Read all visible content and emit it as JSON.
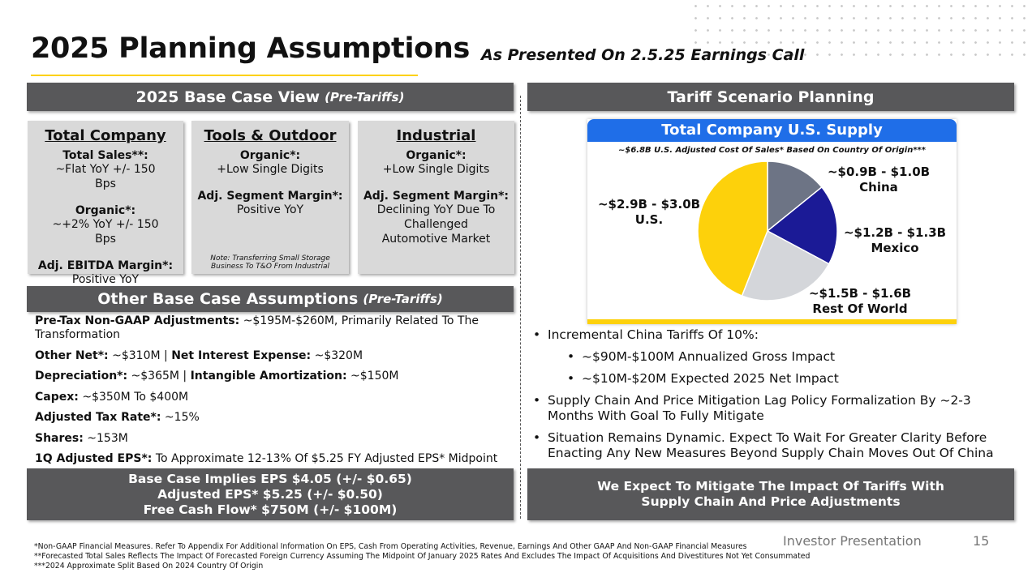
{
  "header": {
    "title": "2025 Planning Assumptions",
    "subtitle": "As Presented On 2.5.25 Earnings Call"
  },
  "left": {
    "banner": "2025 Base Case View",
    "banner_note": "(Pre-Tariffs)",
    "boxes": [
      {
        "heading": "Total Company",
        "items": [
          {
            "label": "Total Sales**:",
            "value": "~Flat YoY +/- 150 Bps"
          },
          {
            "label": "Organic*:",
            "value": "~+2% YoY +/- 150 Bps"
          },
          {
            "label": "Adj. EBITDA Margin*:",
            "value": "Positive YoY"
          }
        ]
      },
      {
        "heading": "Tools & Outdoor",
        "items": [
          {
            "label": "Organic*:",
            "value": "+Low Single Digits"
          },
          {
            "label": "Adj. Segment Margin*:",
            "value": "Positive YoY"
          }
        ],
        "note": "Note: Transferring Small Storage Business To T&O From Industrial"
      },
      {
        "heading": "Industrial",
        "items": [
          {
            "label": "Organic*:",
            "value": "+Low Single Digits"
          },
          {
            "label": "Adj. Segment Margin*:",
            "value": "Declining YoY Due To Challenged Automotive Market"
          }
        ]
      }
    ],
    "other_banner": "Other Base Case Assumptions",
    "other_banner_note": "(Pre-Tariffs)",
    "other_lines": [
      [
        {
          "b": "Pre-Tax Non-GAAP Adjustments:"
        },
        {
          "t": " ~$195M-$260M, Primarily Related To The Transformation"
        }
      ],
      [
        {
          "b": "Other Net*:"
        },
        {
          "t": " ~$310M | "
        },
        {
          "b": "Net Interest Expense:"
        },
        {
          "t": " ~$320M"
        }
      ],
      [
        {
          "b": "Depreciation*:"
        },
        {
          "t": " ~$365M | "
        },
        {
          "b": "Intangible Amortization:"
        },
        {
          "t": " ~$150M"
        }
      ],
      [
        {
          "b": "Capex:"
        },
        {
          "t": " ~$350M To $400M"
        }
      ],
      [
        {
          "b": "Adjusted Tax Rate*:"
        },
        {
          "t": " ~15%"
        }
      ],
      [
        {
          "b": "Shares:"
        },
        {
          "t": " ~153M"
        }
      ],
      [
        {
          "b": "1Q Adjusted EPS*:"
        },
        {
          "t": " To Approximate 12-13% Of $5.25 FY Adjusted EPS* Midpoint"
        }
      ]
    ],
    "summary": [
      "Base Case Implies EPS $4.05 (+/- $0.65)",
      "Adjusted EPS* $5.25 (+/- $0.50)",
      "Free Cash Flow* $750M (+/- $100M)"
    ]
  },
  "right": {
    "banner": "Tariff Scenario Planning",
    "pie_title": "Total Company U.S. Supply",
    "pie_subtitle": "~$6.8B U.S. Adjusted Cost Of Sales* Based On Country Of Origin***",
    "chart_data": {
      "type": "pie",
      "categories": [
        "China",
        "Mexico",
        "Rest Of World",
        "U.S."
      ],
      "values": [
        0.95,
        1.25,
        1.55,
        2.95
      ],
      "value_labels": [
        "~$0.9B - $1.0B",
        "~$1.2B - $1.3B",
        "~$1.5B - $1.6B",
        "~$2.9B - $3.0B"
      ],
      "colors": [
        "#6d7485",
        "#1b1a96",
        "#d4d6da",
        "#fdd10b"
      ]
    },
    "bullets": [
      {
        "text": "Incremental China Tariffs Of 10%:",
        "sub": [
          "~$90M-$100M Annualized Gross Impact",
          "~$10M-$20M Expected 2025 Net Impact"
        ]
      },
      {
        "text": "Supply Chain And Price Mitigation Lag Policy Formalization By ~2-3 Months With Goal To Fully Mitigate"
      },
      {
        "text": "Situation Remains Dynamic. Expect To Wait For Greater Clarity Before Enacting Any New Measures Beyond Supply Chain Moves Out Of China"
      }
    ],
    "summary": "We Expect To Mitigate The Impact Of Tariffs With Supply Chain And Price Adjustments"
  },
  "footer": {
    "notes": [
      "*Non-GAAP Financial Measures. Refer To Appendix For Additional Information On EPS, Cash From Operating Activities, Revenue, Earnings And Other GAAP And Non-GAAP Financial Measures",
      "**Forecasted Total Sales Reflects The Impact Of Forecasted Foreign Currency Assuming The Midpoint Of January 2025 Rates And Excludes The Impact Of Acquisitions And Divestitures Not Yet Consummated",
      "***2024 Approximate Split Based On 2024 Country Of Origin"
    ],
    "label": "Investor Presentation",
    "page": "15"
  }
}
